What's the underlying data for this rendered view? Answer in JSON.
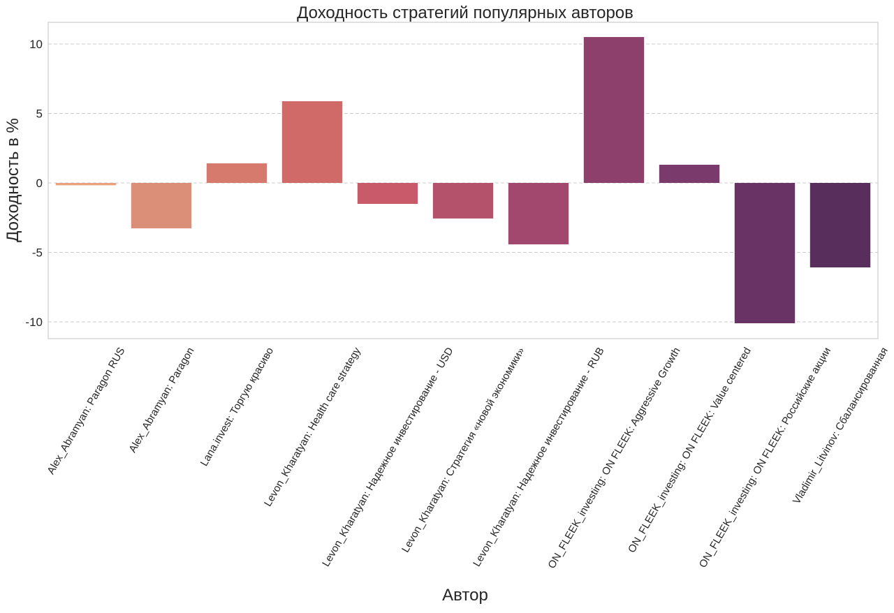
{
  "chart_data": {
    "type": "bar",
    "title": "Доходность стратегий популярных авторов",
    "xlabel": "Автор",
    "ylabel": "Доходность в %",
    "ylim": [
      -11.2,
      11.6
    ],
    "yticks": [
      10,
      5,
      0,
      -5,
      -10
    ],
    "ytick_labels": [
      "10",
      "5",
      "0",
      "-5",
      "-10"
    ],
    "grid": "horizontal dashed",
    "categories": [
      "Alex_Abramyan: Paragon RUS",
      "Alex_Abramyan: Paragon",
      "Lana.invest: Торгую красиво",
      "Levon_Kharatyan: Health care strategy",
      "Levon_Kharatyan: Надежное инвестирование - USD",
      "Levon_Kharatyan: Стратегия «новой экономики»",
      "Levon_Kharatyan: Надежное инвестирование - RUB",
      "ON_FLEEK_investing: ON FLEEK: Aggressive Growth",
      "ON_FLEEK_investing: ON FLEEK: Value centered",
      "ON_FLEEK_investing: ON FLEEK: Российские акции",
      "Vladimir_Litvinov: Сбалансированная"
    ],
    "values": [
      -0.17,
      -3.27,
      1.41,
      5.88,
      -1.51,
      -2.56,
      -4.42,
      10.5,
      1.31,
      -10.1,
      -6.08
    ],
    "colors": [
      "#e9a27c",
      "#dc8f78",
      "#d57a6d",
      "#cf6a68",
      "#c85a6a",
      "#b4526c",
      "#a2476d",
      "#8c406b",
      "#7a3a6b",
      "#693366",
      "#582e5d"
    ]
  }
}
